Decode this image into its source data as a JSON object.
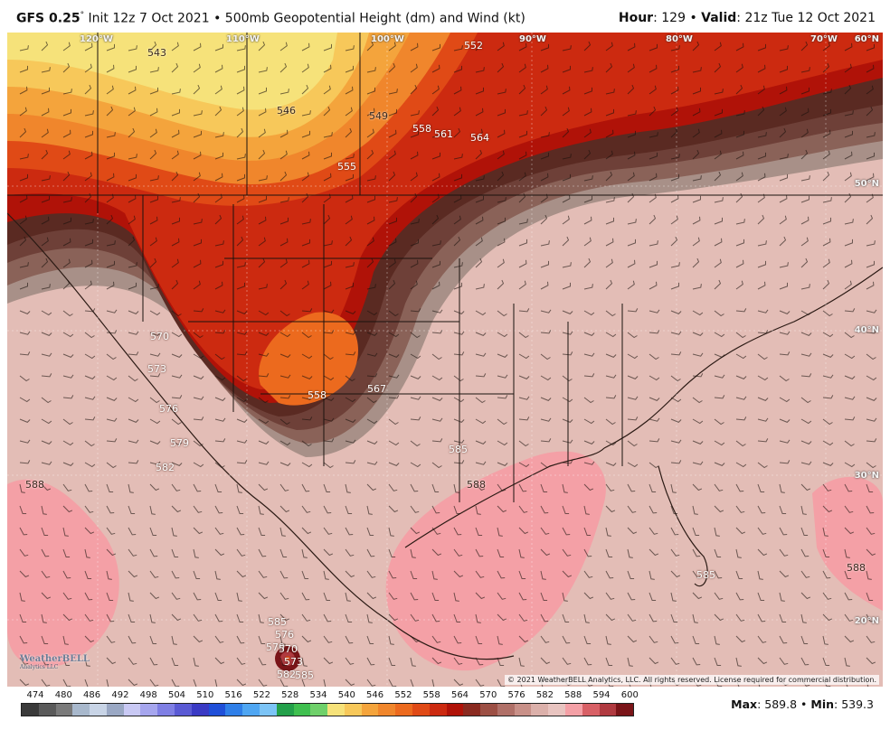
{
  "header": {
    "model": "GFS 0.25",
    "degree_symbol": "°",
    "init_text": "Init 12z 7 Oct 2021",
    "separator": "•",
    "field": "500mb Geopotential Height (dm) and Wind (kt)",
    "hour_label": "Hour",
    "hour_value": "129",
    "valid_label": "Valid",
    "valid_value": "21z Tue 12 Oct 2021"
  },
  "map": {
    "longitudes": [
      "120°W",
      "110°W",
      "100°W",
      "90°W",
      "80°W",
      "70°W",
      "60°N"
    ],
    "latitudes": [
      "50°N",
      "40°N",
      "30°N",
      "20°N"
    ],
    "contour_labels": [
      "543",
      "546",
      "549",
      "552",
      "555",
      "558",
      "561",
      "564",
      "570",
      "573",
      "576",
      "579",
      "582",
      "585",
      "588",
      "558",
      "567",
      "585",
      "588",
      "585",
      "588",
      "585",
      "582",
      "579",
      "576",
      "573",
      "570"
    ],
    "logo": "WeatherBELL",
    "logo_sub": "Analytics LLC",
    "copyright": "© 2021 WeatherBELL Analytics, LLC. All rights reserved. License required for commercial distribution."
  },
  "colorbar": {
    "ticks": [
      "474",
      "480",
      "486",
      "492",
      "498",
      "504",
      "510",
      "516",
      "522",
      "528",
      "534",
      "540",
      "546",
      "552",
      "558",
      "564",
      "570",
      "576",
      "582",
      "588",
      "594",
      "600"
    ],
    "colors": [
      "#3a3a3a",
      "#5a5a5a",
      "#7a7a7a",
      "#a8b8cc",
      "#c8d4e6",
      "#9aa8c4",
      "#c9c9f4",
      "#a6a6ee",
      "#7f7fe4",
      "#5a5ad4",
      "#3a3ac4",
      "#1f4fd8",
      "#2f7fe8",
      "#4fa6f2",
      "#7cc4f6",
      "#23a04a",
      "#3fbf4f",
      "#6fd06a",
      "#f6e27a",
      "#f7c85a",
      "#f4a43c",
      "#f0862c",
      "#ec6a1e",
      "#e04a16",
      "#cc2a10",
      "#b01208",
      "#8a2a20",
      "#9c4f44",
      "#b07068",
      "#c89088",
      "#dbb0aa",
      "#e8c4c0",
      "#f4a0a6",
      "#d86066",
      "#b03a40",
      "#7a1418"
    ],
    "max_label": "Max",
    "max_value": "589.8",
    "min_label": "Min",
    "min_value": "539.3"
  }
}
